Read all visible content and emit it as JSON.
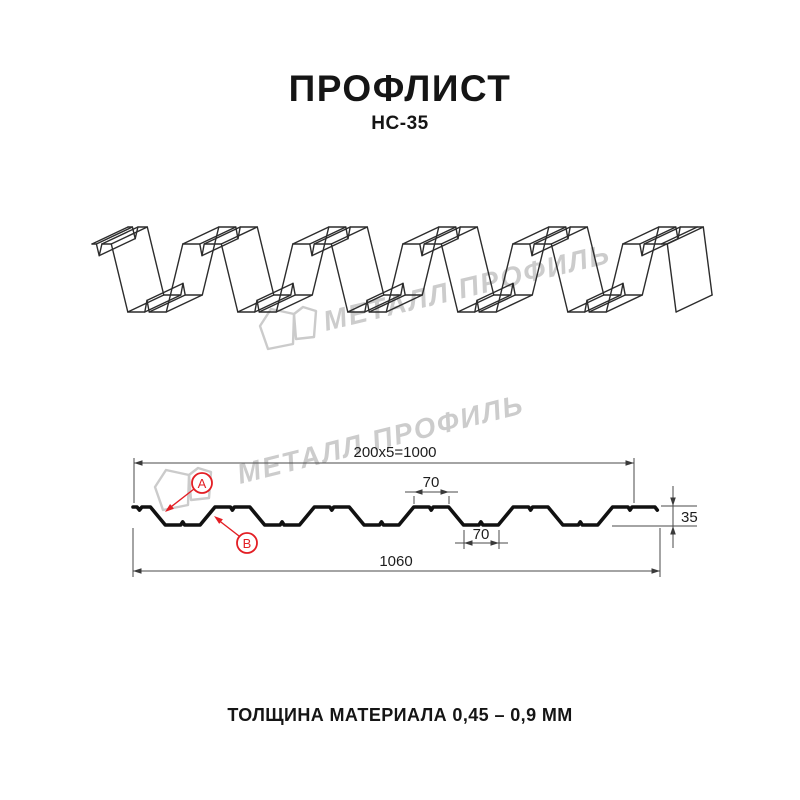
{
  "header": {
    "title": "ПРОФЛИСТ",
    "subtitle": "НС-35"
  },
  "watermark": {
    "brand": "МЕТАЛЛ ПРОФИЛЬ",
    "color": "#cccccc"
  },
  "section_diagram": {
    "dim_coverage": "200x5=1000",
    "dim_top_flat": "70",
    "dim_bottom_flat": "70",
    "dim_full_width": "1060",
    "dim_height": "35",
    "callout_a": "A",
    "callout_b": "B"
  },
  "footer": {
    "thickness_note": "ТОЛЩИНА МАТЕРИАЛА 0,45 – 0,9 ММ"
  },
  "colors": {
    "accent_red": "#e31e24",
    "watermark_gray": "#cccccc",
    "drawing_line": "#2c2c2c"
  }
}
